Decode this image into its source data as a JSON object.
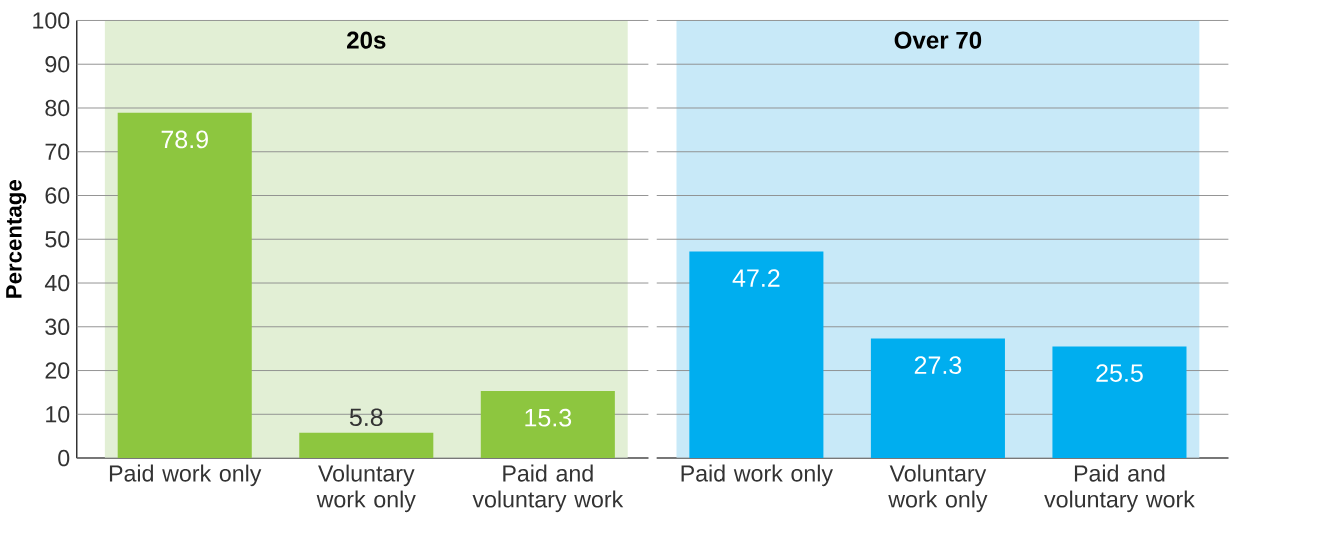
{
  "chart_data": [
    {
      "type": "bar",
      "ylabel": "Percentage",
      "categories": [
        "Paid work only",
        "Voluntary work only",
        "Paid and voluntary work"
      ],
      "values": [
        78.9,
        5.8,
        15.3
      ],
      "colors": [
        "#8dc63f",
        "#8dc63f",
        "#8dc63f"
      ],
      "data_labels": true,
      "ylim": [
        0,
        100
      ],
      "yticks": [
        0,
        10,
        20,
        30,
        40,
        50,
        60,
        70,
        80,
        90,
        100
      ],
      "grid": "y",
      "bands": [
        {
          "axis": "x",
          "from": "Paid work only",
          "to": "Paid and voluntary work",
          "label": "20s",
          "color": "#e2efd5"
        }
      ]
    },
    {
      "type": "bar",
      "categories": [
        "Paid work only",
        "Voluntary work only",
        "Paid and voluntary work"
      ],
      "values": [
        47.2,
        27.3,
        25.5
      ],
      "colors": [
        "#00aeef",
        "#00aeef",
        "#00aeef"
      ],
      "data_labels": true,
      "ylim": [
        0,
        100
      ],
      "yticks": [
        0,
        10,
        20,
        30,
        40,
        50,
        60,
        70,
        80,
        90,
        100
      ],
      "tick_labels": "x",
      "grid": "y",
      "bands": [
        {
          "axis": "x",
          "from": "Paid work only",
          "to": "Paid and voluntary work",
          "label": "Over 70",
          "color": "#c8e9f8"
        }
      ]
    }
  ]
}
